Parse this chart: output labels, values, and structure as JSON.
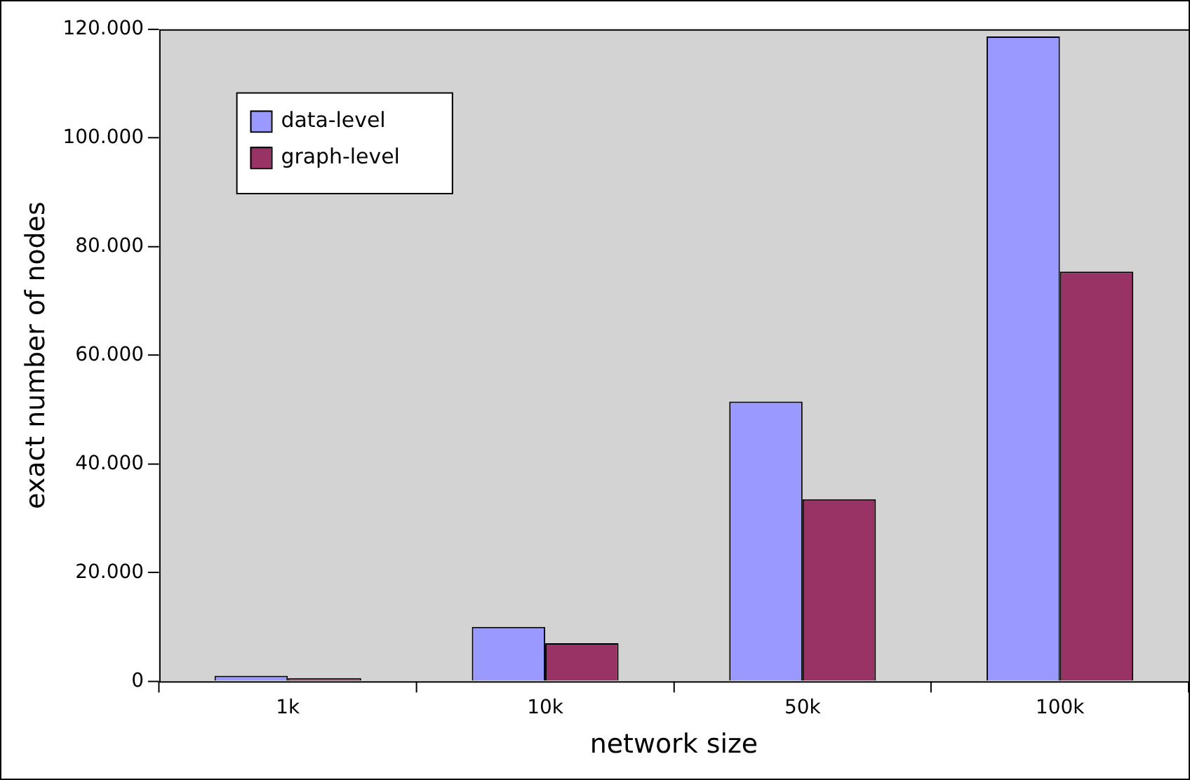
{
  "chart_data": {
    "type": "bar",
    "xlabel": "network size",
    "ylabel": "exact number of nodes",
    "categories": [
      "1k",
      "10k",
      "50k",
      "100k"
    ],
    "series": [
      {
        "name": "data-level",
        "color": "#9999ff",
        "values": [
          1000,
          10000,
          51500,
          118700
        ]
      },
      {
        "name": "graph-level",
        "color": "#993366",
        "values": [
          600,
          7000,
          33500,
          75400
        ]
      }
    ],
    "ylim": [
      0,
      120000
    ],
    "yticks": [
      0,
      {
        "value": 20000,
        "label": "20.000"
      },
      {
        "value": 40000,
        "label": "40.000"
      },
      {
        "value": 60000,
        "label": "60.000"
      },
      {
        "value": 80000,
        "label": "80.000"
      },
      {
        "value": 100000,
        "label": "100.000"
      },
      {
        "value": 120000,
        "label": "120.000"
      }
    ],
    "grid": false,
    "legend": "top left"
  }
}
